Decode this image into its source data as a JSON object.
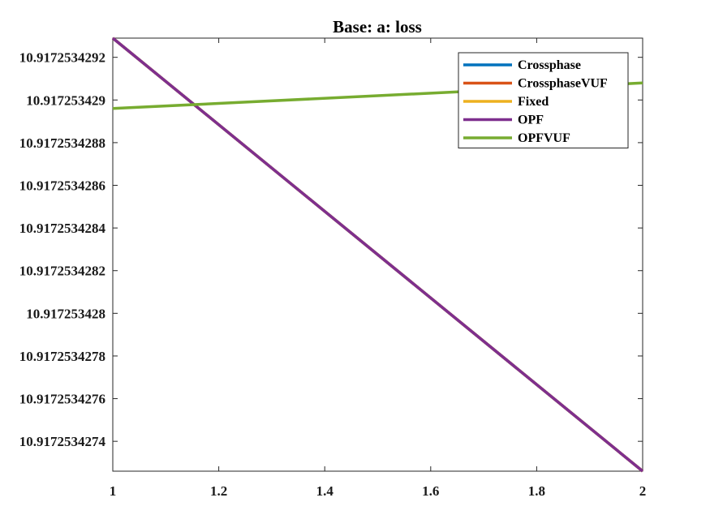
{
  "chart_data": {
    "type": "line",
    "title": "Base: a: loss",
    "xlabel": "",
    "ylabel": "",
    "xlim": [
      1,
      2
    ],
    "ylim": [
      10.91725342726,
      10.91725342929
    ],
    "xticks": [
      1,
      1.2,
      1.4,
      1.6,
      1.8,
      2
    ],
    "xtick_labels": [
      "1",
      "1.2",
      "1.4",
      "1.6",
      "1.8",
      "2"
    ],
    "yticks": [
      10.9172534292,
      10.917253429,
      10.9172534288,
      10.9172534286,
      10.9172534284,
      10.9172534282,
      10.917253428,
      10.9172534278,
      10.9172534276,
      10.9172534274
    ],
    "ytick_labels": [
      "10.9172534292",
      "10.917253429",
      "10.9172534288",
      "10.9172534286",
      "10.9172534284",
      "10.9172534282",
      "10.917253428",
      "10.9172534278",
      "10.9172534276",
      "10.9172534274"
    ],
    "grid": false,
    "legend_position": "top-right",
    "series": [
      {
        "name": "Crossphase",
        "color": "#0072BD",
        "x": [
          1,
          2
        ],
        "y": [
          10.91725342929,
          10.91725342726
        ]
      },
      {
        "name": "CrossphaseVUF",
        "color": "#D95319",
        "x": [
          1,
          2
        ],
        "y": [
          10.91725342929,
          10.91725342726
        ]
      },
      {
        "name": "Fixed",
        "color": "#EDB120",
        "x": [
          1,
          2
        ],
        "y": [
          10.91725342929,
          10.91725342726
        ]
      },
      {
        "name": "OPF",
        "color": "#7E2F8E",
        "x": [
          1,
          2
        ],
        "y": [
          10.91725342929,
          10.91725342726
        ]
      },
      {
        "name": "OPFVUF",
        "color": "#77AC30",
        "x": [
          1,
          2
        ],
        "y": [
          10.91725342896,
          10.91725342908
        ]
      }
    ]
  }
}
